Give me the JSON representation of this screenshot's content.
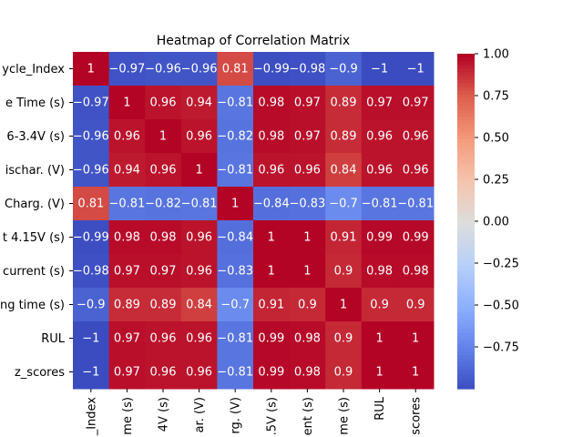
{
  "chart_data": {
    "type": "heatmap",
    "title": "Heatmap of Correlation Matrix",
    "row_labels": [
      "ycle_Index",
      "e Time (s)",
      "6-3.4V (s)",
      "ischar. (V)",
      "Charg. (V)",
      "t 4.15V (s)",
      "current (s)",
      "ng time (s)",
      "RUL",
      "z_scores"
    ],
    "col_labels": [
      "_Index",
      "me (s)",
      "4V (s)",
      "ar. (V)",
      "rg. (V)",
      ".5V (s)",
      "ent (s)",
      "me (s)",
      "RUL",
      "scores"
    ],
    "values": [
      [
        1,
        -0.97,
        -0.96,
        -0.96,
        0.81,
        -0.99,
        -0.98,
        -0.9,
        -1,
        -1
      ],
      [
        -0.97,
        1,
        0.96,
        0.94,
        -0.81,
        0.98,
        0.97,
        0.89,
        0.97,
        0.97
      ],
      [
        -0.96,
        0.96,
        1,
        0.96,
        -0.82,
        0.98,
        0.97,
        0.89,
        0.96,
        0.96
      ],
      [
        -0.96,
        0.94,
        0.96,
        1,
        -0.81,
        0.96,
        0.96,
        0.84,
        0.96,
        0.96
      ],
      [
        0.81,
        -0.81,
        -0.82,
        -0.81,
        1,
        -0.84,
        -0.83,
        -0.7,
        -0.81,
        -0.81
      ],
      [
        -0.99,
        0.98,
        0.98,
        0.96,
        -0.84,
        1,
        1,
        0.91,
        0.99,
        0.99
      ],
      [
        -0.98,
        0.97,
        0.97,
        0.96,
        -0.83,
        1,
        1,
        0.9,
        0.98,
        0.98
      ],
      [
        -0.9,
        0.89,
        0.89,
        0.84,
        -0.7,
        0.91,
        0.9,
        1,
        0.9,
        0.9
      ],
      [
        -1,
        0.97,
        0.96,
        0.96,
        -0.81,
        0.99,
        0.98,
        0.9,
        1,
        1
      ],
      [
        -1,
        0.97,
        0.96,
        0.96,
        -0.81,
        0.99,
        0.98,
        0.9,
        1,
        1
      ]
    ],
    "colormap": "coolwarm",
    "vmin": -1,
    "vmax": 1,
    "colorbar_ticks": [
      "1.00",
      "0.75",
      "0.50",
      "0.25",
      "0.00",
      "−0.25",
      "−0.50",
      "−0.75"
    ],
    "colorbar_tick_values": [
      1,
      0.75,
      0.5,
      0.25,
      0,
      -0.25,
      -0.5,
      -0.75
    ],
    "grid": false,
    "legend": "colorbar-right"
  }
}
